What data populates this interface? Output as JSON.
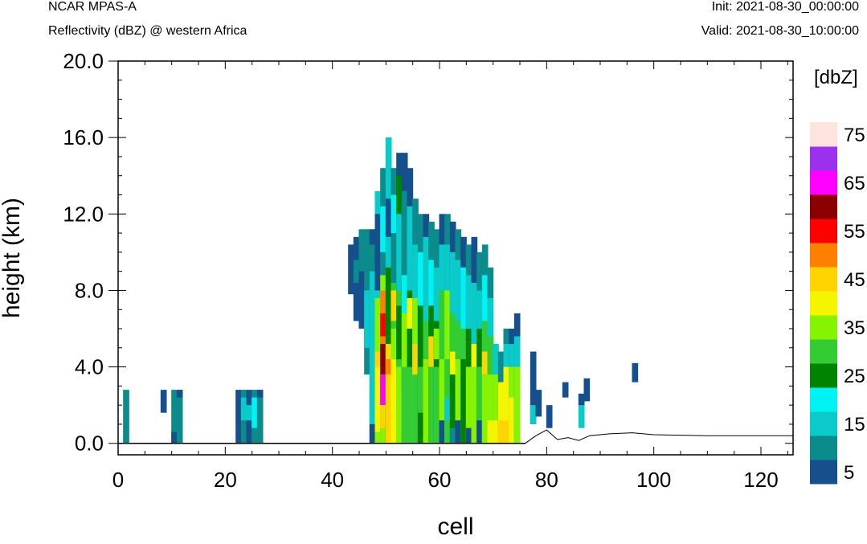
{
  "header": {
    "top_left": "NCAR MPAS-A",
    "subtitle": "Reflectivity (dBZ) @ western Africa",
    "init": "Init: 2021-08-30_00:00:00",
    "valid": "Valid: 2021-08-30_10:00:00"
  },
  "chart_data": {
    "type": "heatmap",
    "title": "NCAR MPAS-A",
    "subtitle": "Reflectivity (dBZ) @ western Africa",
    "xlabel": "cell",
    "ylabel": "height (km)",
    "xlim": [
      0,
      126
    ],
    "ylim": [
      -0.6,
      20.0
    ],
    "x_ticks": [
      0,
      20,
      40,
      60,
      80,
      100,
      120
    ],
    "x_tick_labels": [
      "0",
      "20",
      "40",
      "60",
      "80",
      "100",
      "120"
    ],
    "y_ticks": [
      0.0,
      4.0,
      8.0,
      12.0,
      16.0,
      20.0
    ],
    "y_tick_labels": [
      "0.0",
      "4.0",
      "8.0",
      "12.0",
      "16.0",
      "20.0"
    ],
    "colorbar": {
      "units": "[dbZ]",
      "levels": [
        5,
        10,
        15,
        20,
        25,
        30,
        35,
        40,
        45,
        50,
        55,
        60,
        65,
        70,
        75
      ],
      "labels": [
        "5",
        "15",
        "25",
        "35",
        "45",
        "55",
        "65",
        "75"
      ],
      "colors": [
        "#15508d",
        "#0b8b8b",
        "#0bcaca",
        "#00f2f2",
        "#008300",
        "#33cc33",
        "#86f300",
        "#f5f500",
        "#ffd400",
        "#ff8000",
        "#ff0000",
        "#8b0000",
        "#ff00ff",
        "#9b30ef",
        "#ffe3de"
      ]
    },
    "columns": [
      {
        "x": 1,
        "layers": [
          [
            0,
            2.8,
            1
          ]
        ]
      },
      {
        "x": 8,
        "layers": [
          [
            1.6,
            2.8,
            0
          ]
        ]
      },
      {
        "x": 10,
        "layers": [
          [
            0,
            2.8,
            1
          ],
          [
            0,
            0.6,
            0
          ]
        ]
      },
      {
        "x": 11,
        "layers": [
          [
            0,
            2.8,
            1
          ],
          [
            2.4,
            2.8,
            0
          ]
        ]
      },
      {
        "x": 22,
        "layers": [
          [
            0,
            2.8,
            0
          ]
        ]
      },
      {
        "x": 23,
        "layers": [
          [
            0,
            2.8,
            1
          ],
          [
            1.2,
            2.4,
            2
          ]
        ]
      },
      {
        "x": 24,
        "layers": [
          [
            0,
            2.8,
            0
          ],
          [
            1.2,
            2.0,
            2
          ]
        ]
      },
      {
        "x": 25,
        "layers": [
          [
            0,
            2.8,
            1
          ],
          [
            0.8,
            2.4,
            3
          ]
        ]
      },
      {
        "x": 26,
        "layers": [
          [
            0,
            2.8,
            1
          ],
          [
            2.4,
            2.8,
            0
          ]
        ]
      },
      {
        "x": 43,
        "layers": [
          [
            7.8,
            10.4,
            0
          ]
        ]
      },
      {
        "x": 44,
        "layers": [
          [
            6.4,
            10.8,
            0
          ],
          [
            8.4,
            9.6,
            1
          ]
        ]
      },
      {
        "x": 45,
        "layers": [
          [
            6.0,
            11.2,
            1
          ],
          [
            6.0,
            9.0,
            0
          ]
        ]
      },
      {
        "x": 46,
        "layers": [
          [
            3.6,
            11.2,
            1
          ],
          [
            5.0,
            8.0,
            2
          ]
        ]
      },
      {
        "x": 47,
        "layers": [
          [
            0,
            11.2,
            1
          ],
          [
            1.0,
            9.0,
            2
          ],
          [
            0,
            1.0,
            0
          ],
          [
            10.4,
            11.2,
            0
          ]
        ]
      },
      {
        "x": 48,
        "layers": [
          [
            0,
            13.2,
            2
          ],
          [
            0,
            7.6,
            6
          ],
          [
            2.0,
            4.8,
            8
          ],
          [
            3.0,
            4.0,
            12
          ],
          [
            0.6,
            4.0,
            7
          ],
          [
            8.0,
            12.0,
            0
          ]
        ]
      },
      {
        "x": 49,
        "layers": [
          [
            0,
            14.4,
            1
          ],
          [
            0,
            8.8,
            6
          ],
          [
            5.0,
            8.0,
            9
          ],
          [
            5.6,
            6.8,
            10
          ],
          [
            3.6,
            5.2,
            11
          ],
          [
            2.0,
            3.6,
            12
          ],
          [
            0.8,
            2.0,
            8
          ],
          [
            10,
            12.4,
            3
          ]
        ]
      },
      {
        "x": 50,
        "layers": [
          [
            0,
            16.0,
            2
          ],
          [
            0,
            9.2,
            4
          ],
          [
            0,
            5.2,
            8
          ],
          [
            3.6,
            4.4,
            9
          ],
          [
            13.6,
            16.0,
            2
          ],
          [
            10.8,
            12.8,
            0
          ]
        ]
      },
      {
        "x": 51,
        "layers": [
          [
            0,
            14.4,
            1
          ],
          [
            0,
            8.4,
            5
          ],
          [
            0,
            4.4,
            7
          ],
          [
            4.4,
            6.0,
            6
          ],
          [
            6.4,
            8.0,
            8
          ],
          [
            11,
            13,
            3
          ]
        ]
      },
      {
        "x": 52,
        "layers": [
          [
            0,
            15.2,
            0
          ],
          [
            0,
            12.4,
            2
          ],
          [
            0,
            8.0,
            5
          ],
          [
            0,
            4.0,
            6
          ],
          [
            4.4,
            7.2,
            4
          ],
          [
            12,
            14,
            4
          ]
        ]
      },
      {
        "x": 53,
        "layers": [
          [
            0,
            15.2,
            0
          ],
          [
            0,
            13.2,
            1
          ],
          [
            0,
            8.8,
            3
          ],
          [
            0,
            4.0,
            5
          ],
          [
            4.0,
            6.8,
            6
          ]
        ]
      },
      {
        "x": 54,
        "layers": [
          [
            0,
            14.4,
            0
          ],
          [
            0,
            12.4,
            2
          ],
          [
            0,
            8.0,
            4
          ],
          [
            0,
            4.0,
            5
          ],
          [
            6.0,
            7.6,
            7
          ]
        ]
      },
      {
        "x": 55,
        "layers": [
          [
            0,
            12.8,
            1
          ],
          [
            0,
            10.4,
            2
          ],
          [
            0,
            7.6,
            6
          ],
          [
            0,
            4.0,
            5
          ],
          [
            3.6,
            5.2,
            8
          ]
        ]
      },
      {
        "x": 56,
        "layers": [
          [
            0,
            12.0,
            1
          ],
          [
            0,
            10.0,
            3
          ],
          [
            0,
            7.2,
            4
          ],
          [
            1.6,
            4.0,
            5
          ]
        ]
      },
      {
        "x": 57,
        "layers": [
          [
            0,
            12.0,
            0
          ],
          [
            0,
            10.8,
            2
          ],
          [
            0,
            6.4,
            5
          ],
          [
            0,
            4.4,
            6
          ]
        ]
      },
      {
        "x": 58,
        "layers": [
          [
            0,
            11.6,
            1
          ],
          [
            0,
            9.6,
            3
          ],
          [
            0,
            7.2,
            4
          ],
          [
            0,
            4.0,
            5
          ],
          [
            4.0,
            5.6,
            8
          ]
        ]
      },
      {
        "x": 59,
        "layers": [
          [
            0,
            11.2,
            1
          ],
          [
            0,
            9.2,
            2
          ],
          [
            0,
            6.4,
            4
          ],
          [
            0,
            4.0,
            5
          ],
          [
            4.4,
            6.0,
            6
          ]
        ]
      },
      {
        "x": 60,
        "layers": [
          [
            0,
            12.0,
            0
          ],
          [
            0,
            10.4,
            2
          ],
          [
            0,
            8.0,
            5
          ],
          [
            0,
            4.4,
            6
          ],
          [
            0,
            1.2,
            0
          ]
        ]
      },
      {
        "x": 61,
        "layers": [
          [
            0,
            12.0,
            1
          ],
          [
            0,
            10.4,
            2
          ],
          [
            0,
            8.0,
            6
          ],
          [
            0,
            4.4,
            5
          ],
          [
            1.2,
            2.4,
            2
          ]
        ]
      },
      {
        "x": 62,
        "layers": [
          [
            0,
            11.6,
            0
          ],
          [
            0,
            10.0,
            2
          ],
          [
            0,
            6.8,
            5
          ],
          [
            0,
            4.4,
            4
          ],
          [
            3.6,
            4.8,
            7
          ],
          [
            0,
            0.8,
            1
          ]
        ]
      },
      {
        "x": 63,
        "layers": [
          [
            0,
            11.2,
            1
          ],
          [
            0,
            9.6,
            2
          ],
          [
            0,
            6.4,
            5
          ],
          [
            0,
            4.4,
            6
          ],
          [
            0,
            1.2,
            0
          ]
        ]
      },
      {
        "x": 64,
        "layers": [
          [
            0,
            10.8,
            0
          ],
          [
            0,
            9.2,
            3
          ],
          [
            0,
            6.0,
            5
          ],
          [
            0,
            4.4,
            4
          ]
        ]
      },
      {
        "x": 65,
        "layers": [
          [
            0,
            10.4,
            1
          ],
          [
            0,
            8.8,
            2
          ],
          [
            0,
            6.0,
            4
          ],
          [
            0,
            4.0,
            6
          ],
          [
            0,
            0.8,
            0
          ]
        ]
      },
      {
        "x": 66,
        "layers": [
          [
            0,
            10.8,
            0
          ],
          [
            0,
            8.4,
            2
          ],
          [
            0,
            5.2,
            5
          ],
          [
            0,
            4.0,
            6
          ],
          [
            4.0,
            5.2,
            7
          ]
        ]
      },
      {
        "x": 67,
        "layers": [
          [
            0,
            10.0,
            1
          ],
          [
            0,
            8.0,
            2
          ],
          [
            0,
            6.0,
            4
          ],
          [
            0,
            4.0,
            5
          ],
          [
            0,
            1.2,
            0
          ]
        ]
      },
      {
        "x": 68,
        "layers": [
          [
            0,
            10.4,
            1
          ],
          [
            0,
            8.8,
            3
          ],
          [
            0,
            6.4,
            5
          ],
          [
            0,
            4.0,
            6
          ],
          [
            3.6,
            4.8,
            8
          ]
        ]
      },
      {
        "x": 69,
        "layers": [
          [
            0,
            9.2,
            1
          ],
          [
            0,
            7.6,
            2
          ],
          [
            0,
            5.6,
            5
          ],
          [
            0,
            3.6,
            6
          ],
          [
            0,
            1.2,
            7
          ]
        ]
      },
      {
        "x": 70,
        "layers": [
          [
            0,
            5.2,
            2
          ],
          [
            0,
            3.6,
            6
          ],
          [
            0,
            1.2,
            7
          ]
        ]
      },
      {
        "x": 71,
        "layers": [
          [
            0,
            4.8,
            1
          ],
          [
            0,
            3.2,
            7
          ],
          [
            0,
            1.2,
            8
          ]
        ]
      },
      {
        "x": 72,
        "layers": [
          [
            0,
            6.0,
            1
          ],
          [
            0,
            5.2,
            2
          ],
          [
            0,
            4.0,
            7
          ],
          [
            0,
            1.2,
            8
          ]
        ]
      },
      {
        "x": 73,
        "layers": [
          [
            0,
            6.0,
            0
          ],
          [
            0,
            5.2,
            2
          ],
          [
            0,
            4.0,
            6
          ],
          [
            0,
            2.4,
            7
          ]
        ]
      },
      {
        "x": 74,
        "layers": [
          [
            0,
            6.8,
            0
          ],
          [
            0,
            5.6,
            2
          ],
          [
            0,
            4.0,
            6
          ]
        ]
      },
      {
        "x": 77,
        "layers": [
          [
            1.0,
            4.8,
            0
          ],
          [
            1.0,
            2.0,
            2
          ]
        ]
      },
      {
        "x": 78,
        "layers": [
          [
            1.4,
            2.8,
            0
          ]
        ]
      },
      {
        "x": 80,
        "layers": [
          [
            0.8,
            2.0,
            0
          ]
        ]
      },
      {
        "x": 83,
        "layers": [
          [
            2.4,
            3.2,
            0
          ]
        ]
      },
      {
        "x": 86,
        "layers": [
          [
            0.8,
            2.4,
            2
          ],
          [
            2.0,
            2.6,
            0
          ]
        ]
      },
      {
        "x": 87,
        "layers": [
          [
            2.2,
            3.4,
            0
          ]
        ]
      },
      {
        "x": 96,
        "layers": [
          [
            3.2,
            4.2,
            0
          ]
        ]
      }
    ],
    "terrain": [
      [
        0,
        0
      ],
      [
        76,
        0
      ],
      [
        78,
        0.4
      ],
      [
        80,
        0.7
      ],
      [
        82,
        0.2
      ],
      [
        84,
        0.3
      ],
      [
        86,
        0.15
      ],
      [
        88,
        0.4
      ],
      [
        92,
        0.5
      ],
      [
        96,
        0.55
      ],
      [
        100,
        0.45
      ],
      [
        110,
        0.4
      ],
      [
        126,
        0.4
      ]
    ]
  }
}
